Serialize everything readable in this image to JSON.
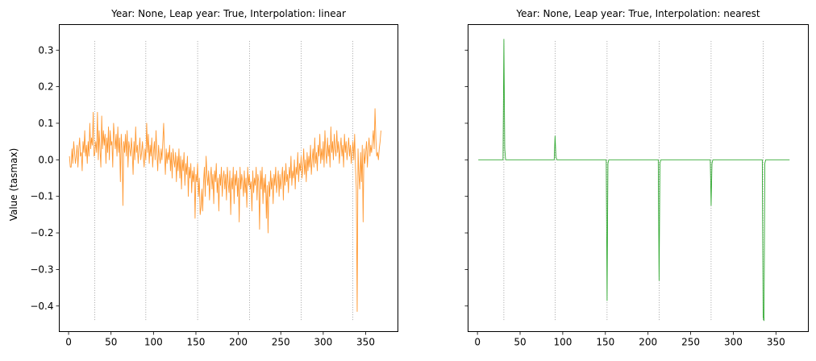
{
  "chart_data": [
    {
      "type": "line",
      "title": "Year: None, Leap year: True, Interpolation: linear",
      "xlabel": "",
      "ylabel": "Value (tasmax)",
      "xlim": [
        -11,
        388
      ],
      "ylim": [
        -0.47,
        0.37
      ],
      "xticks": [
        0,
        50,
        100,
        150,
        200,
        250,
        300,
        350
      ],
      "yticks": [
        -0.4,
        -0.3,
        -0.2,
        -0.1,
        0.0,
        0.1,
        0.2,
        0.3
      ],
      "ytick_labels": [
        "−0.4",
        "−0.3",
        "−0.2",
        "−0.1",
        "0.0",
        "0.1",
        "0.2",
        "0.3"
      ],
      "grid": false,
      "vlines": {
        "x": [
          31,
          91,
          152,
          213,
          274,
          335
        ],
        "ymin": -0.44,
        "ymax": 0.325,
        "color": "#808080"
      },
      "series": [
        {
          "color": "#ff9933",
          "x_start": 1,
          "x_step": 1,
          "values": [
            0.01,
            -0.02,
            -0.02,
            0.03,
            -0.01,
            0.05,
            0.02,
            -0.01,
            0.01,
            0.04,
            -0.02,
            0.03,
            0.06,
            0.01,
            0.02,
            -0.03,
            0.05,
            0.02,
            0.08,
            0.01,
            0.04,
            -0.01,
            0.05,
            0.01,
            0.1,
            0.03,
            0.06,
            0.04,
            0.13,
            0.01,
            0.02,
            0.05,
            0.02,
            0.13,
            0.0,
            0.08,
            0.03,
            -0.02,
            0.12,
            0.03,
            0.08,
            0.04,
            0.07,
            -0.01,
            0.06,
            0.02,
            0.09,
            0.0,
            0.08,
            0.04,
            0.05,
            -0.02,
            0.1,
            0.06,
            0.03,
            0.07,
            0.01,
            0.09,
            0.02,
            0.06,
            -0.06,
            0.07,
            0.03,
            -0.125,
            0.05,
            0.02,
            0.07,
            0.01,
            0.08,
            -0.02,
            0.05,
            0.03,
            0.01,
            0.06,
            0.02,
            -0.04,
            0.05,
            0.0,
            0.09,
            0.02,
            0.04,
            -0.01,
            0.03,
            0.06,
            0.0,
            0.02,
            0.05,
            0.01,
            -0.02,
            0.03,
            0.0,
            0.1,
            0.02,
            0.07,
            -0.01,
            0.04,
            0.01,
            0.06,
            -0.02,
            0.02,
            0.05,
            0.0,
            0.08,
            0.02,
            -0.03,
            0.04,
            0.01,
            -0.01,
            0.03,
            0.0,
            0.05,
            0.1,
            0.02,
            -0.04,
            0.03,
            -0.01,
            0.02,
            0.0,
            0.04,
            -0.03,
            0.02,
            -0.05,
            0.03,
            0.0,
            -0.02,
            0.02,
            -0.06,
            0.01,
            -0.03,
            0.03,
            -0.05,
            0.01,
            -0.08,
            0.0,
            -0.03,
            0.02,
            -0.07,
            -0.01,
            -0.04,
            0.01,
            -0.1,
            -0.02,
            -0.05,
            -0.01,
            -0.09,
            -0.03,
            -0.06,
            -0.02,
            -0.16,
            -0.04,
            -0.06,
            -0.01,
            -0.1,
            -0.05,
            -0.15,
            -0.13,
            -0.08,
            -0.14,
            -0.06,
            -0.02,
            -0.1,
            0.01,
            -0.04,
            -0.07,
            -0.03,
            -0.11,
            -0.05,
            -0.02,
            -0.08,
            -0.04,
            -0.12,
            -0.03,
            -0.06,
            -0.01,
            -0.09,
            -0.05,
            -0.14,
            -0.04,
            -0.07,
            -0.02,
            -0.1,
            -0.05,
            -0.03,
            -0.08,
            -0.04,
            -0.11,
            -0.02,
            -0.06,
            -0.09,
            -0.03,
            -0.15,
            -0.05,
            -0.08,
            -0.02,
            -0.12,
            -0.04,
            -0.07,
            -0.03,
            -0.1,
            -0.05,
            -0.17,
            -0.02,
            -0.08,
            -0.04,
            -0.06,
            -0.1,
            -0.03,
            -0.09,
            -0.05,
            -0.13,
            -0.02,
            -0.07,
            -0.04,
            -0.08,
            -0.06,
            -0.14,
            -0.03,
            -0.09,
            -0.05,
            -0.07,
            -0.02,
            -0.11,
            -0.04,
            -0.06,
            -0.19,
            -0.03,
            -0.08,
            -0.02,
            -0.12,
            -0.05,
            -0.09,
            -0.04,
            -0.16,
            -0.07,
            -0.2,
            -0.06,
            -0.1,
            -0.03,
            -0.08,
            -0.05,
            -0.12,
            -0.04,
            -0.07,
            -0.02,
            -0.09,
            -0.06,
            -0.03,
            -0.1,
            -0.04,
            -0.08,
            -0.05,
            -0.02,
            -0.11,
            -0.03,
            -0.07,
            -0.01,
            -0.06,
            -0.04,
            -0.09,
            -0.02,
            -0.05,
            0.01,
            -0.07,
            -0.03,
            -0.05,
            0.0,
            -0.08,
            -0.02,
            -0.04,
            0.02,
            -0.06,
            -0.01,
            -0.03,
            0.01,
            -0.05,
            -0.02,
            0.03,
            -0.04,
            0.0,
            -0.06,
            0.02,
            -0.03,
            0.01,
            -0.02,
            0.04,
            -0.04,
            0.0,
            0.03,
            -0.02,
            0.06,
            -0.01,
            0.02,
            -0.03,
            0.04,
            0.01,
            0.07,
            -0.01,
            0.03,
            0.0,
            0.05,
            -0.02,
            0.08,
            0.02,
            -0.01,
            0.06,
            0.01,
            0.04,
            -0.02,
            0.09,
            0.02,
            0.05,
            0.0,
            0.07,
            0.03,
            0.01,
            0.08,
            0.02,
            0.05,
            -0.01,
            0.03,
            0.06,
            0.01,
            0.04,
            -0.02,
            0.07,
            0.02,
            0.05,
            0.0,
            0.03,
            0.06,
            0.01,
            0.04,
            -0.01,
            0.02,
            0.05,
            0.0,
            0.07,
            -0.02,
            -0.08,
            -0.415,
            0.03,
            -0.04,
            -0.08,
            0.02,
            -0.06,
            0.04,
            -0.17,
            0.03,
            -0.01,
            0.02,
            0.05,
            -0.02,
            0.03,
            0.06,
            0.01,
            0.04,
            0.02,
            0.05,
            0.08,
            0.03,
            0.14,
            0.06,
            0.01,
            0.02,
            0.0,
            0.03,
            0.05,
            0.08
          ]
        }
      ]
    },
    {
      "type": "line",
      "title": "Year: None, Leap year: True, Interpolation: nearest",
      "xlabel": "",
      "ylabel": "",
      "xlim": [
        -11,
        388
      ],
      "ylim": [
        -0.47,
        0.37
      ],
      "xticks": [
        0,
        50,
        100,
        150,
        200,
        250,
        300,
        350
      ],
      "yticks": [
        -0.4,
        -0.3,
        -0.2,
        -0.1,
        0.0,
        0.1,
        0.2,
        0.3
      ],
      "ytick_labels": [],
      "grid": false,
      "vlines": {
        "x": [
          31,
          91,
          152,
          213,
          274,
          335
        ],
        "ymin": -0.44,
        "ymax": 0.325,
        "color": "#808080"
      },
      "series": [
        {
          "color": "#33aa33",
          "x": [
            1,
            29,
            30,
            31,
            32,
            33,
            89,
            90,
            91,
            92,
            93,
            150,
            151,
            152,
            153,
            154,
            211,
            212,
            213,
            214,
            215,
            272,
            273,
            274,
            275,
            276,
            333,
            334,
            335,
            336,
            337,
            338,
            366
          ],
          "y": [
            0.0,
            0.0,
            0.0,
            0.33,
            0.03,
            0.0,
            0.0,
            0.0,
            0.065,
            0.01,
            0.0,
            0.0,
            0.0,
            -0.385,
            -0.01,
            0.0,
            0.0,
            0.0,
            -0.33,
            -0.01,
            0.0,
            0.0,
            0.0,
            -0.125,
            -0.01,
            0.0,
            0.0,
            0.0,
            -0.43,
            -0.44,
            -0.01,
            0.0,
            0.0
          ]
        }
      ]
    }
  ]
}
